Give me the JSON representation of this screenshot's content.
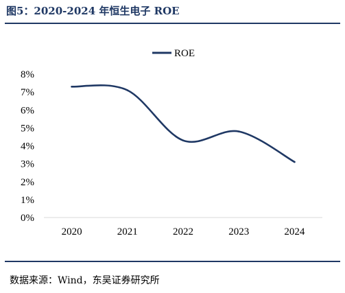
{
  "figure": {
    "title": "图5：2020-2024 年恒生电子 ROE",
    "source": "数据来源：Wind，东吴证券研究所"
  },
  "colors": {
    "accent": "#1f3864",
    "series": "#1f3864",
    "axis": "#d9d9d9",
    "text": "#000000"
  },
  "chart_data": {
    "type": "line",
    "categories": [
      "2020",
      "2021",
      "2022",
      "2023",
      "2024"
    ],
    "series": [
      {
        "name": "ROE",
        "values": [
          7.3,
          7.1,
          4.3,
          4.8,
          3.1
        ],
        "smooth": true
      }
    ],
    "yticks": [
      "0%",
      "1%",
      "2%",
      "3%",
      "4%",
      "5%",
      "6%",
      "7%",
      "8%"
    ],
    "ylim": [
      0,
      8
    ],
    "ylabel": "",
    "xlabel": "",
    "legend": "top-center",
    "grid": false
  }
}
